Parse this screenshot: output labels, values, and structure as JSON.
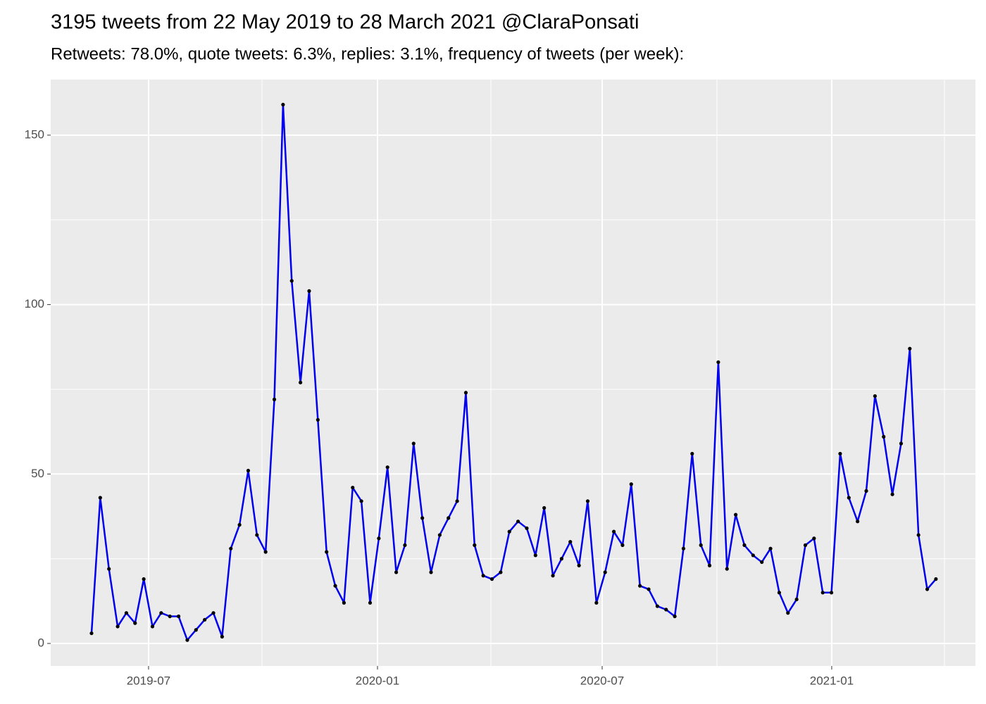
{
  "chart_data": {
    "type": "line",
    "title": "3195 tweets from 22 May 2019 to 28 March 2021 @ClaraPonsati",
    "subtitle": "Retweets: 78.0%, quote tweets: 6.3%, replies: 3.1%, frequency of tweets (per week):",
    "values": [
      3,
      43,
      22,
      5,
      9,
      6,
      19,
      5,
      9,
      8,
      8,
      1,
      4,
      7,
      9,
      2,
      28,
      35,
      51,
      32,
      27,
      72,
      159,
      107,
      77,
      104,
      66,
      27,
      17,
      12,
      46,
      42,
      12,
      31,
      52,
      21,
      29,
      59,
      37,
      21,
      32,
      37,
      42,
      74,
      29,
      20,
      19,
      21,
      33,
      36,
      34,
      26,
      40,
      20,
      25,
      30,
      23,
      42,
      12,
      21,
      33,
      29,
      47,
      17,
      16,
      11,
      10,
      8,
      28,
      56,
      29,
      23,
      83,
      22,
      38,
      29,
      26,
      24,
      28,
      15,
      9,
      13,
      29,
      31,
      15,
      15,
      56,
      43,
      36,
      45,
      73,
      61,
      44,
      59,
      87,
      32,
      16,
      19
    ],
    "color": "#0000ee",
    "point_color": "#000000",
    "xlim": [
      -4.69,
      101.54
    ],
    "xticks": [
      {
        "value": 6.55,
        "label": "2019-07"
      },
      {
        "value": 32.85,
        "label": "2020-01"
      },
      {
        "value": 58.66,
        "label": "2020-07"
      },
      {
        "value": 85.03,
        "label": "2021-01"
      }
    ],
    "xminorticks": [
      19.58,
      45.87,
      71.84,
      97.98
    ],
    "ylim": [
      -6.65,
      166.4
    ],
    "yticks": [
      0,
      50,
      100,
      150
    ],
    "yminorticks": [
      25,
      75,
      125
    ],
    "grid": true
  }
}
